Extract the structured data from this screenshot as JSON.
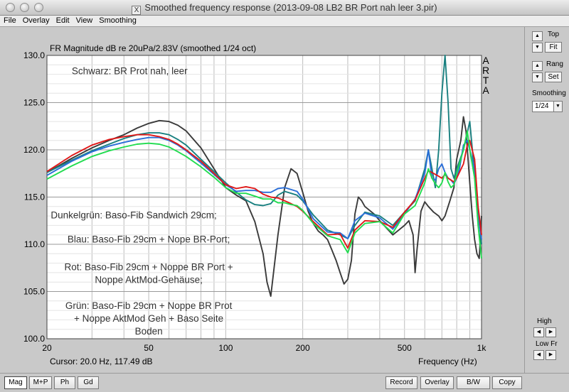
{
  "window": {
    "title": "Smoothed frequency response (2013-09-08 LB2 BR Port nah leer 3.pir)",
    "x_glyph": "X"
  },
  "menu": [
    "File",
    "Overlay",
    "Edit",
    "View",
    "Smoothing"
  ],
  "chart_data": {
    "type": "line",
    "title": "FR Magnitude dB re 20uPa/2.83V (smoothed 1/24 oct)",
    "xlabel": "Frequency (Hz)",
    "xscale": "log",
    "xlim": [
      20,
      1000
    ],
    "ylim": [
      100,
      130
    ],
    "x_ticks": [
      {
        "v": 20,
        "label": "20"
      },
      {
        "v": 50,
        "label": "50"
      },
      {
        "v": 100,
        "label": "100"
      },
      {
        "v": 200,
        "label": "200"
      },
      {
        "v": 500,
        "label": "500"
      },
      {
        "v": 1000,
        "label": "1k"
      }
    ],
    "y_ticks": [
      {
        "v": 100,
        "label": "100.0"
      },
      {
        "v": 105,
        "label": "105.0"
      },
      {
        "v": 110,
        "label": "110.0"
      },
      {
        "v": 115,
        "label": "115.0"
      },
      {
        "v": 120,
        "label": "120.0"
      },
      {
        "v": 125,
        "label": "125.0"
      },
      {
        "v": 130,
        "label": "130.0"
      }
    ],
    "grid": true,
    "watermark": [
      "A",
      "R",
      "T",
      "A"
    ],
    "cursor_text": "Cursor: 20.0 Hz, 117.49 dB",
    "annotations": [
      {
        "lines": [
          "Schwarz: BR Prot nah, leer"
        ],
        "align": "left",
        "x": 25,
        "y": 128.0
      },
      {
        "lines": [
          "Dunkelgrün: Baso-Fib Sandwich 29cm;"
        ],
        "align": "left",
        "x": 20.7,
        "y": 112.75
      },
      {
        "lines": [
          "Blau: Baso-Fib 29cm + Nope BR-Port;"
        ],
        "align": "center",
        "x": 50,
        "y": 110.2
      },
      {
        "lines": [
          "Rot: Baso-Fib 29cm + Noppe BR Port +",
          "Noppe AktMod-Gehäuse;"
        ],
        "align": "center",
        "x": 50,
        "y": 107.25
      },
      {
        "lines": [
          "Grün: Baso-Fib 29cm + Noppe BR Prot",
          "+ Noppe AktMod Geh + Baso Seite",
          "Boden"
        ],
        "align": "center",
        "x": 50,
        "y": 103.15
      }
    ],
    "series": [
      {
        "color": "#3a3a3a",
        "x": [
          20,
          25,
          30,
          35,
          40,
          45,
          50,
          55,
          60,
          65,
          70,
          80,
          90,
          100,
          110,
          120,
          130,
          140,
          145,
          150,
          160,
          170,
          180,
          190,
          200,
          210,
          220,
          230,
          240,
          250,
          260,
          270,
          280,
          290,
          300,
          310,
          320,
          330,
          340,
          350,
          380,
          400,
          450,
          500,
          520,
          540,
          550,
          560,
          580,
          600,
          620,
          650,
          680,
          700,
          720,
          750,
          780,
          800,
          830,
          850,
          870,
          900,
          920,
          940,
          960,
          980,
          1000
        ],
        "y": [
          117.6,
          119.1,
          120.2,
          121.0,
          121.6,
          122.3,
          122.8,
          123.1,
          123.0,
          122.6,
          122.0,
          120.2,
          118.0,
          116.0,
          115.2,
          114.6,
          112.4,
          109.0,
          106.0,
          104.5,
          111.0,
          116.0,
          118.0,
          117.5,
          115.5,
          113.5,
          112.2,
          111.4,
          111.0,
          110.5,
          109.4,
          108.3,
          107.0,
          105.8,
          106.3,
          108.3,
          113.2,
          115.0,
          114.6,
          114.0,
          113.2,
          112.5,
          111.0,
          112.0,
          112.5,
          111.0,
          107.0,
          109.5,
          113.5,
          114.5,
          114.0,
          113.4,
          113.0,
          112.5,
          113.0,
          114.5,
          116.0,
          119.0,
          121.0,
          123.5,
          122.0,
          116.5,
          113.0,
          110.5,
          109.0,
          108.5,
          113.0
        ]
      },
      {
        "color": "#1a8080",
        "x": [
          20,
          25,
          30,
          35,
          40,
          45,
          50,
          55,
          60,
          65,
          70,
          80,
          90,
          100,
          110,
          120,
          130,
          140,
          150,
          160,
          170,
          180,
          190,
          200,
          220,
          250,
          280,
          300,
          320,
          350,
          400,
          450,
          500,
          550,
          600,
          620,
          640,
          660,
          680,
          700,
          720,
          740,
          760,
          780,
          800,
          850,
          900,
          950,
          1000
        ],
        "y": [
          117.6,
          118.9,
          119.9,
          120.6,
          121.2,
          121.6,
          121.8,
          121.8,
          121.6,
          121.1,
          120.5,
          119.0,
          117.7,
          116.5,
          115.5,
          114.7,
          114.2,
          114.1,
          114.3,
          115.2,
          115.6,
          115.4,
          115.2,
          114.6,
          113.1,
          111.5,
          111.0,
          110.6,
          112.0,
          113.4,
          113.0,
          112.0,
          113.4,
          114.6,
          118.0,
          120.0,
          118.0,
          116.0,
          120.0,
          126.0,
          130.0,
          125.0,
          118.0,
          117.0,
          118.0,
          120.0,
          123.0,
          116.0,
          110.0
        ]
      },
      {
        "color": "#2a6ed8",
        "x": [
          20,
          25,
          30,
          35,
          40,
          45,
          50,
          55,
          60,
          65,
          70,
          80,
          90,
          100,
          110,
          120,
          130,
          140,
          150,
          160,
          170,
          180,
          190,
          200,
          220,
          250,
          280,
          300,
          320,
          350,
          400,
          450,
          500,
          550,
          600,
          620,
          640,
          660,
          680,
          700,
          720,
          740,
          760,
          780,
          800,
          820,
          850,
          880,
          900,
          940,
          970,
          1000
        ],
        "y": [
          117.3,
          118.8,
          119.8,
          120.4,
          120.8,
          121.1,
          121.3,
          121.3,
          121.0,
          120.5,
          119.9,
          118.6,
          117.4,
          116.3,
          115.6,
          115.7,
          115.7,
          115.5,
          115.5,
          115.9,
          116.0,
          115.8,
          115.6,
          114.8,
          112.7,
          111.3,
          111.2,
          110.6,
          112.5,
          113.3,
          112.8,
          111.6,
          113.2,
          114.8,
          117.5,
          120.0,
          117.0,
          116.8,
          118.0,
          118.5,
          117.6,
          117.0,
          116.8,
          116.4,
          117.0,
          118.0,
          120.5,
          121.0,
          120.0,
          118.0,
          113.0,
          110.5
        ]
      },
      {
        "color": "#e01818",
        "x": [
          20,
          25,
          30,
          35,
          40,
          45,
          50,
          55,
          60,
          65,
          70,
          80,
          90,
          100,
          110,
          120,
          130,
          140,
          150,
          160,
          170,
          180,
          190,
          200,
          220,
          250,
          280,
          300,
          320,
          350,
          400,
          450,
          500,
          550,
          600,
          620,
          640,
          660,
          680,
          700,
          720,
          740,
          760,
          780,
          800,
          850,
          880,
          900,
          940,
          970,
          1000
        ],
        "y": [
          117.7,
          119.4,
          120.5,
          121.1,
          121.4,
          121.6,
          121.6,
          121.4,
          121.1,
          120.6,
          120.0,
          118.8,
          117.5,
          116.3,
          115.9,
          116.1,
          115.9,
          115.3,
          115.0,
          114.9,
          114.6,
          114.3,
          114.0,
          113.5,
          112.4,
          111.0,
          111.1,
          109.6,
          111.5,
          112.5,
          112.4,
          111.8,
          113.4,
          114.7,
          117.0,
          117.8,
          117.6,
          117.4,
          117.2,
          117.0,
          117.4,
          117.0,
          116.8,
          116.6,
          117.0,
          118.5,
          120.5,
          121.0,
          119.0,
          114.0,
          111.0
        ]
      },
      {
        "color": "#22dc50",
        "x": [
          20,
          25,
          30,
          35,
          40,
          45,
          50,
          55,
          60,
          65,
          70,
          80,
          90,
          100,
          110,
          120,
          130,
          140,
          150,
          160,
          170,
          180,
          190,
          200,
          220,
          250,
          280,
          300,
          320,
          350,
          400,
          450,
          500,
          550,
          600,
          620,
          640,
          660,
          680,
          700,
          720,
          740,
          760,
          780,
          800,
          850,
          880,
          900,
          940,
          970,
          1000
        ],
        "y": [
          116.9,
          118.3,
          119.3,
          119.9,
          120.3,
          120.6,
          120.7,
          120.6,
          120.3,
          119.8,
          119.3,
          118.2,
          117.1,
          116.0,
          115.4,
          115.4,
          115.1,
          114.8,
          114.8,
          114.4,
          114.4,
          114.2,
          114.1,
          113.6,
          112.2,
          110.9,
          110.5,
          109.1,
          111.2,
          112.2,
          112.4,
          111.2,
          113.2,
          114.1,
          116.5,
          118.0,
          117.0,
          116.4,
          116.0,
          116.5,
          117.6,
          116.6,
          116.0,
          116.3,
          117.5,
          120.0,
          122.0,
          120.0,
          117.0,
          112.0,
          108.5
        ]
      }
    ]
  },
  "panel": {
    "top_label": "Top",
    "fit_label": "Fit",
    "range_label": "Rang",
    "set_label": "Set",
    "smoothing_label": "Smoothing",
    "smoothing_value": "1/24",
    "high_label": "High",
    "low_label": "Low Fr",
    "up_glyph": "▲",
    "down_glyph": "▼",
    "left_glyph": "◀",
    "right_glyph": "▶"
  },
  "bottom": {
    "tabs": [
      "Mag",
      "M+P",
      "Ph",
      "Gd"
    ],
    "active_tab": "Mag",
    "actions": [
      "Record",
      "Overlay",
      "B/W",
      "Copy"
    ]
  }
}
